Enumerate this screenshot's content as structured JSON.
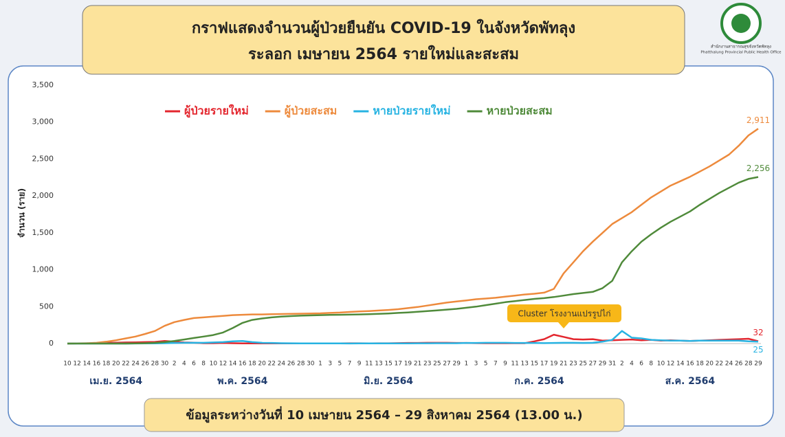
{
  "header": {
    "logo_text": "สำนักงานสาธารณสุขจังหวัดพัทลุง",
    "logo_subtext": "Phatthalung Provincial Public Health Office"
  },
  "footer": "ข้อมูลระหว่างวันที่ 10 เมษายน 2564 – 29 สิงหาคม 2564 (13.00 น.)",
  "chart_data": {
    "type": "line",
    "title": [
      "กราฟแสดงจำนวนผู้ป่วยยืนยัน COVID-19 ในจังหวัดพัทลุง",
      "ระลอก เมษายน 2564 รายใหม่และสะสม"
    ],
    "y_label": "จำนวน (ราย)",
    "annotation": "Cluster โรงงานแปรรูปไก่",
    "months": [
      "เม.ย. 2564",
      "พ.ค. 2564",
      "มิ.ย. 2564",
      "ก.ค. 2564",
      "ส.ค. 2564"
    ],
    "categories": [
      "10",
      "12",
      "14",
      "16",
      "18",
      "20",
      "22",
      "24",
      "26",
      "28",
      "30",
      "2",
      "4",
      "6",
      "8",
      "10",
      "12",
      "14",
      "16",
      "18",
      "20",
      "22",
      "24",
      "26",
      "28",
      "30",
      "1",
      "3",
      "5",
      "7",
      "9",
      "11",
      "13",
      "15",
      "17",
      "19",
      "21",
      "23",
      "25",
      "27",
      "29",
      "1",
      "3",
      "5",
      "7",
      "9",
      "11",
      "13",
      "15",
      "17",
      "19",
      "21",
      "23",
      "25",
      "27",
      "29",
      "31",
      "2",
      "4",
      "6",
      "8",
      "10",
      "12",
      "14",
      "16",
      "18",
      "20",
      "22",
      "24",
      "26",
      "28",
      "29"
    ],
    "ylim": [
      0,
      3500
    ],
    "yticks": [
      0,
      500,
      {
        "value": 1000,
        "label": "1,000"
      },
      {
        "value": 1500,
        "label": "1,500"
      },
      {
        "value": 2000,
        "label": "2,000"
      },
      {
        "value": 2500,
        "label": "2,500"
      },
      {
        "value": 3000,
        "label": "3,000"
      },
      {
        "value": 3500,
        "label": "3,500"
      }
    ],
    "grid": false,
    "series": [
      {
        "name": "ผู้ป่วยรายใหม่",
        "color": "#e3262e",
        "values": [
          0,
          2,
          3,
          5,
          10,
          12,
          15,
          17,
          20,
          22,
          35,
          25,
          15,
          12,
          5,
          5,
          8,
          5,
          3,
          2,
          2,
          2,
          2,
          2,
          2,
          2,
          2,
          3,
          3,
          4,
          4,
          3,
          4,
          4,
          6,
          8,
          8,
          10,
          10,
          10,
          8,
          8,
          6,
          5,
          5,
          5,
          5,
          5,
          30,
          60,
          120,
          90,
          60,
          55,
          60,
          40,
          45,
          50,
          55,
          45,
          50,
          40,
          45,
          40,
          35,
          40,
          45,
          50,
          55,
          60,
          65,
          32
        ]
      },
      {
        "name": "ผู้ป่วยสะสม",
        "color": "#ed8a3c",
        "values": [
          0,
          2,
          5,
          10,
          25,
          45,
          70,
          95,
          130,
          170,
          240,
          290,
          320,
          345,
          355,
          365,
          375,
          385,
          390,
          395,
          395,
          398,
          400,
          402,
          405,
          408,
          410,
          415,
          420,
          428,
          435,
          440,
          448,
          455,
          465,
          480,
          495,
          515,
          535,
          555,
          570,
          585,
          600,
          610,
          620,
          635,
          650,
          665,
          675,
          690,
          740,
          950,
          1100,
          1250,
          1380,
          1500,
          1620,
          1700,
          1780,
          1880,
          1980,
          2060,
          2140,
          2200,
          2260,
          2330,
          2400,
          2480,
          2560,
          2680,
          2820,
          2911
        ],
        "value_labels": [
          null,
          null,
          null,
          null,
          null,
          null,
          null,
          null,
          null,
          null,
          null,
          null,
          null,
          null,
          null,
          null,
          null,
          null,
          null,
          null,
          null,
          null,
          null,
          null,
          null,
          null,
          null,
          null,
          null,
          null,
          null,
          null,
          null,
          null,
          null,
          null,
          null,
          null,
          null,
          null,
          null,
          null,
          null,
          null,
          null,
          null,
          null,
          null,
          null,
          null,
          null,
          null,
          null,
          null,
          null,
          null,
          null,
          null,
          null,
          null,
          null,
          null,
          null,
          null,
          null,
          null,
          null,
          null,
          null,
          null,
          null,
          "2,911"
        ]
      },
      {
        "name": "หายป่วยรายใหม่",
        "color": "#27b3e2",
        "values": [
          0,
          0,
          0,
          0,
          0,
          0,
          0,
          1,
          2,
          3,
          5,
          8,
          10,
          10,
          10,
          15,
          20,
          30,
          35,
          20,
          10,
          8,
          5,
          4,
          3,
          2,
          2,
          2,
          2,
          1,
          2,
          2,
          2,
          3,
          3,
          3,
          4,
          4,
          5,
          5,
          5,
          8,
          8,
          10,
          10,
          10,
          8,
          8,
          8,
          6,
          8,
          10,
          10,
          8,
          10,
          25,
          50,
          170,
          80,
          70,
          50,
          45,
          40,
          40,
          35,
          40,
          40,
          40,
          40,
          40,
          30,
          25
        ]
      },
      {
        "name": "หายป่วยสะสม",
        "color": "#4f8a3a",
        "values": [
          0,
          0,
          0,
          0,
          0,
          0,
          0,
          2,
          5,
          10,
          20,
          35,
          55,
          75,
          95,
          115,
          150,
          210,
          280,
          320,
          340,
          355,
          365,
          372,
          378,
          382,
          385,
          388,
          390,
          392,
          395,
          398,
          402,
          408,
          415,
          422,
          430,
          440,
          450,
          460,
          470,
          485,
          500,
          520,
          540,
          560,
          575,
          590,
          605,
          615,
          630,
          650,
          670,
          685,
          700,
          750,
          850,
          1100,
          1250,
          1380,
          1480,
          1570,
          1650,
          1720,
          1790,
          1880,
          1960,
          2040,
          2110,
          2180,
          2230,
          2256
        ],
        "value_labels": [
          null,
          null,
          null,
          null,
          null,
          null,
          null,
          null,
          null,
          null,
          null,
          null,
          null,
          null,
          null,
          null,
          null,
          null,
          null,
          null,
          null,
          null,
          null,
          null,
          null,
          null,
          null,
          null,
          null,
          null,
          null,
          null,
          null,
          null,
          null,
          null,
          null,
          null,
          null,
          null,
          null,
          null,
          null,
          null,
          null,
          null,
          null,
          null,
          null,
          null,
          null,
          null,
          null,
          null,
          null,
          null,
          null,
          null,
          null,
          null,
          null,
          null,
          null,
          null,
          null,
          null,
          null,
          null,
          null,
          null,
          null,
          "2,256"
        ]
      }
    ]
  }
}
